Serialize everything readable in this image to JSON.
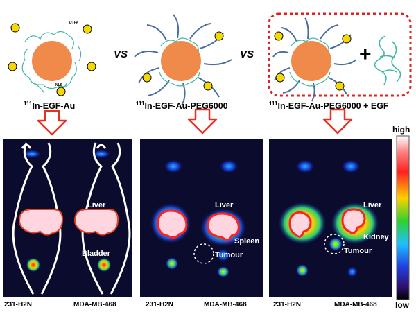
{
  "groups": [
    {
      "isotope": "111",
      "name": "In-EGF-Au"
    },
    {
      "isotope": "111",
      "name": "In-EGF-Au-PEG6000"
    },
    {
      "isotope": "111",
      "name": "In-EGF-Au-PEG6000 + EGF"
    }
  ],
  "vs_label": "VS",
  "plus_sign": "+",
  "panels": [
    {
      "organs": {
        "liver": "Liver",
        "bladder": "Bladder"
      },
      "mice": [
        "231-H2N",
        "MDA-MB-468"
      ]
    },
    {
      "organs": {
        "liver": "Liver",
        "spleen": "Spleen",
        "tumour": "Tumour"
      },
      "mice": [
        "231-H2N",
        "MDA-MB-468"
      ]
    },
    {
      "organs": {
        "liver": "Liver",
        "kidney": "Kidney",
        "tumour": "Tumour"
      },
      "mice": [
        "231-H2N",
        "MDA-MB-468"
      ]
    }
  ],
  "scale": {
    "high": "high",
    "low": "low"
  },
  "colors": {
    "particle_core": "#f08a4b",
    "peg_chain": "#4a6ea0",
    "protein": "#3fb8a6",
    "arrow": "#e83020",
    "dashed_box": "#dd2222",
    "background_scan": "#0b0b2e"
  },
  "molecule_labels": [
    "DTPA",
    "NLS"
  ]
}
